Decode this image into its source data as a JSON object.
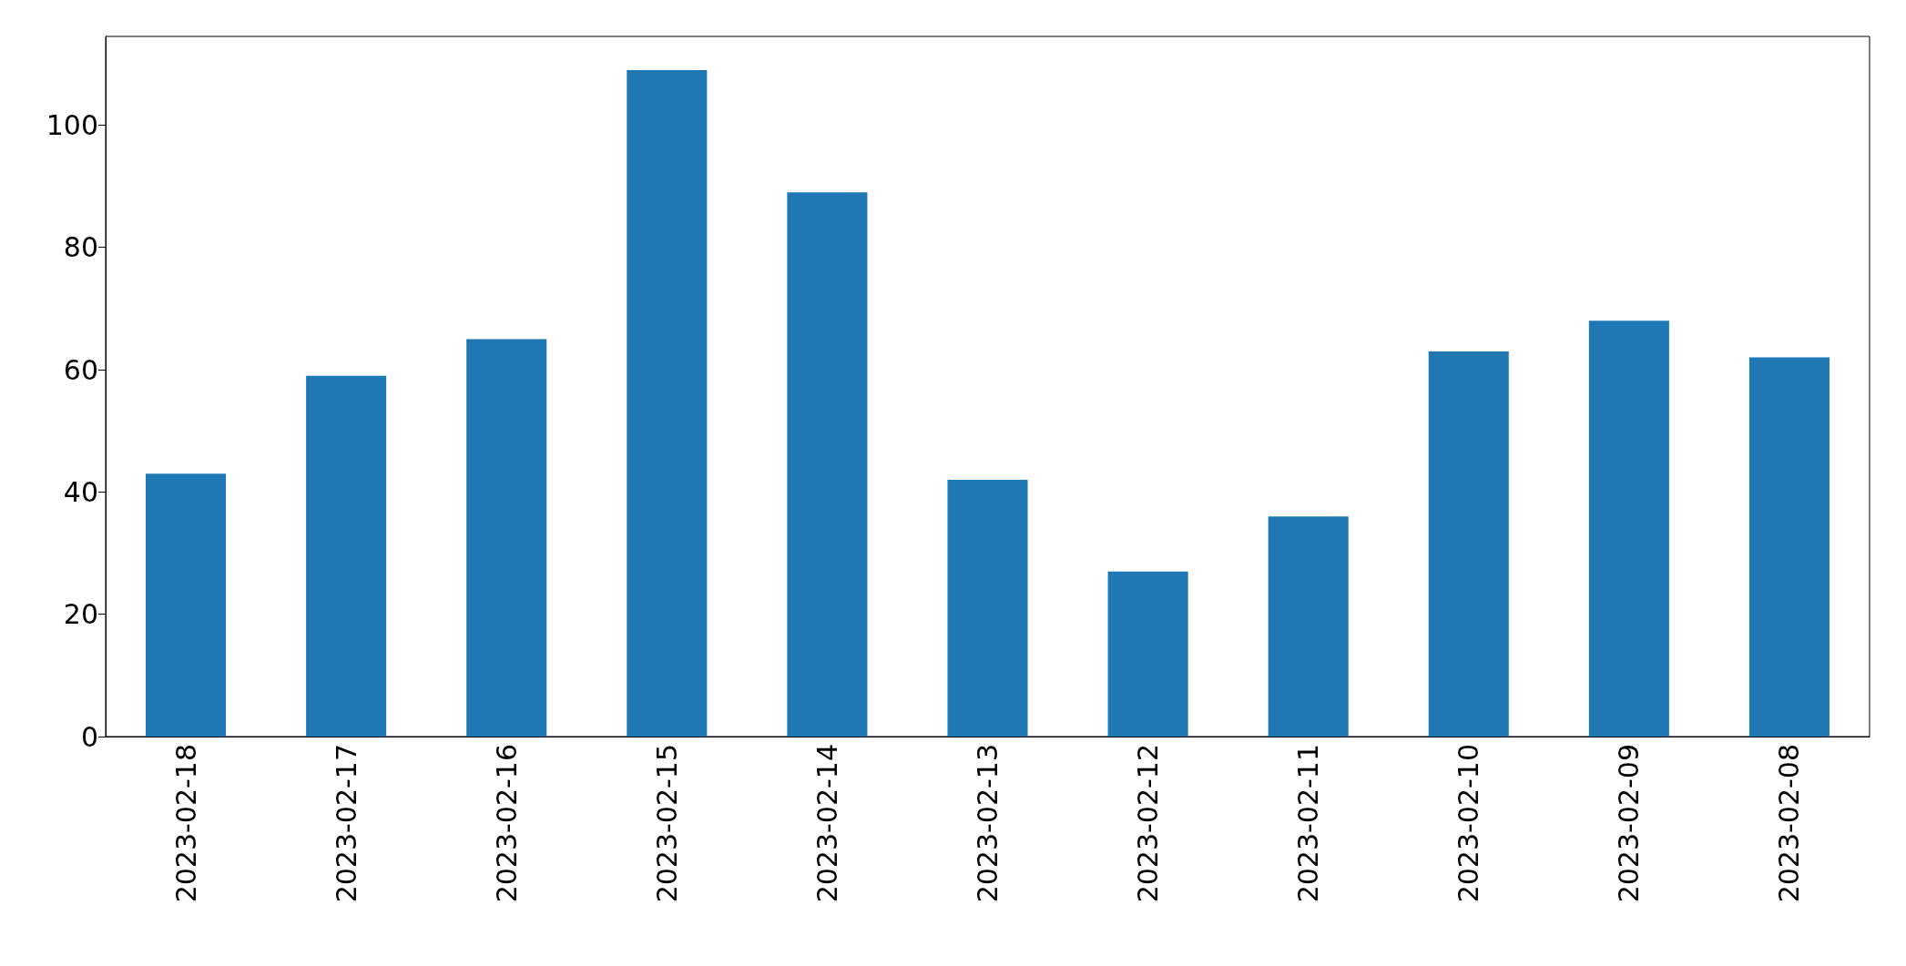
{
  "chart_data": {
    "type": "bar",
    "categories": [
      "2023-02-18",
      "2023-02-17",
      "2023-02-16",
      "2023-02-15",
      "2023-02-14",
      "2023-02-13",
      "2023-02-12",
      "2023-02-11",
      "2023-02-10",
      "2023-02-09",
      "2023-02-08"
    ],
    "values": [
      43,
      59,
      65,
      109,
      89,
      42,
      27,
      36,
      63,
      68,
      62
    ],
    "color": "#1f77b4",
    "ylim": [
      0,
      114.5
    ],
    "yticks": [
      0,
      20,
      40,
      60,
      80,
      100
    ],
    "grid": false
  }
}
